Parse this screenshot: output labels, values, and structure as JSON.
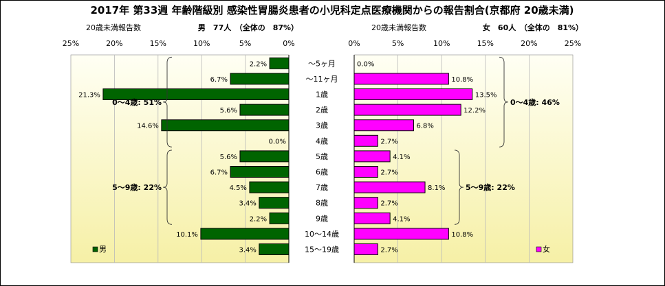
{
  "title": "2017年 第33週 年齢階級別 感染性胃腸炎患者の小児科定点医療機関からの報告割合(京都府 20歳未満)",
  "colors": {
    "male": "#006400",
    "female": "#ff00ff",
    "bg_top": "#fffff4",
    "bg_bottom": "#f6f0a6"
  },
  "chart_data": [
    {
      "type": "bar",
      "orientation": "horizontal",
      "direction": "right-to-left",
      "subtitle_left": "20歳未満報告数",
      "subtitle_right": "男　77人　（全体の　87%）",
      "xlim": [
        0,
        25
      ],
      "x_ticks": [
        "25%",
        "20%",
        "15%",
        "10%",
        "5%",
        "0%"
      ],
      "categories": [
        "～5ヶ月",
        "～11ヶ月",
        "1歳",
        "2歳",
        "3歳",
        "4歳",
        "5歳",
        "6歳",
        "7歳",
        "8歳",
        "9歳",
        "10～14歳",
        "15～19歳"
      ],
      "series": [
        {
          "name": "男",
          "values": [
            2.2,
            6.7,
            21.3,
            5.6,
            14.6,
            0.0,
            5.6,
            6.7,
            4.5,
            3.4,
            2.2,
            10.1,
            3.4
          ],
          "labels": [
            "2.2%",
            "6.7%",
            "21.3%",
            "5.6%",
            "14.6%",
            "0.0%",
            "5.6%",
            "6.7%",
            "4.5%",
            "3.4%",
            "2.2%",
            "10.1%",
            "3.4%"
          ]
        }
      ],
      "annotations": [
        {
          "text": "0～4歳: 51%",
          "from": 0,
          "to": 5
        },
        {
          "text": "5～9歳: 22%",
          "from": 6,
          "to": 10
        }
      ],
      "legend": "bottom-left",
      "grid": true
    },
    {
      "type": "bar",
      "orientation": "horizontal",
      "subtitle_left": "20歳未満報告数",
      "subtitle_right": "女　60人　（全体の　81%）",
      "xlim": [
        0,
        25
      ],
      "x_ticks": [
        "0%",
        "5%",
        "10%",
        "15%",
        "20%",
        "25%"
      ],
      "categories": [
        "～5ヶ月",
        "～11ヶ月",
        "1歳",
        "2歳",
        "3歳",
        "4歳",
        "5歳",
        "6歳",
        "7歳",
        "8歳",
        "9歳",
        "10～14歳",
        "15～19歳"
      ],
      "series": [
        {
          "name": "女",
          "values": [
            0.0,
            10.8,
            13.5,
            12.2,
            6.8,
            2.7,
            4.1,
            2.7,
            8.1,
            2.7,
            4.1,
            10.8,
            2.7
          ],
          "labels": [
            "0.0%",
            "10.8%",
            "13.5%",
            "12.2%",
            "6.8%",
            "2.7%",
            "4.1%",
            "2.7%",
            "8.1%",
            "2.7%",
            "4.1%",
            "10.8%",
            "2.7%"
          ]
        }
      ],
      "annotations": [
        {
          "text": "0～4歳: 46%",
          "from": 0,
          "to": 5
        },
        {
          "text": "5～9歳: 22%",
          "from": 6,
          "to": 10
        }
      ],
      "legend": "bottom-right",
      "grid": true
    }
  ]
}
